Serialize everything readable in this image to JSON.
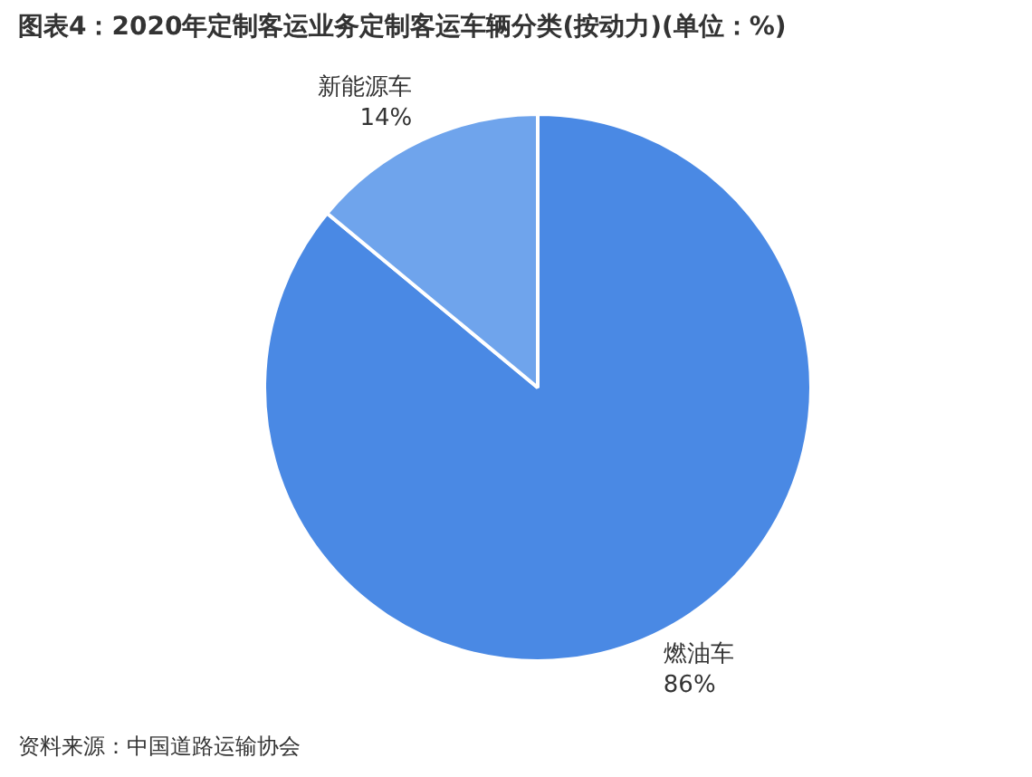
{
  "chart_data": {
    "type": "pie",
    "title": "图表4：2020年定制客运业务定制客运车辆分类(按动力)(单位：%)",
    "categories": [
      "燃油车",
      "新能源车"
    ],
    "values": [
      86,
      14
    ],
    "colors": [
      "#4a89e4",
      "#6fa4ec"
    ],
    "value_labels": [
      "86%",
      "14%"
    ],
    "annotations": [
      "资料来源：中国道路运输协会"
    ],
    "legend": false
  }
}
